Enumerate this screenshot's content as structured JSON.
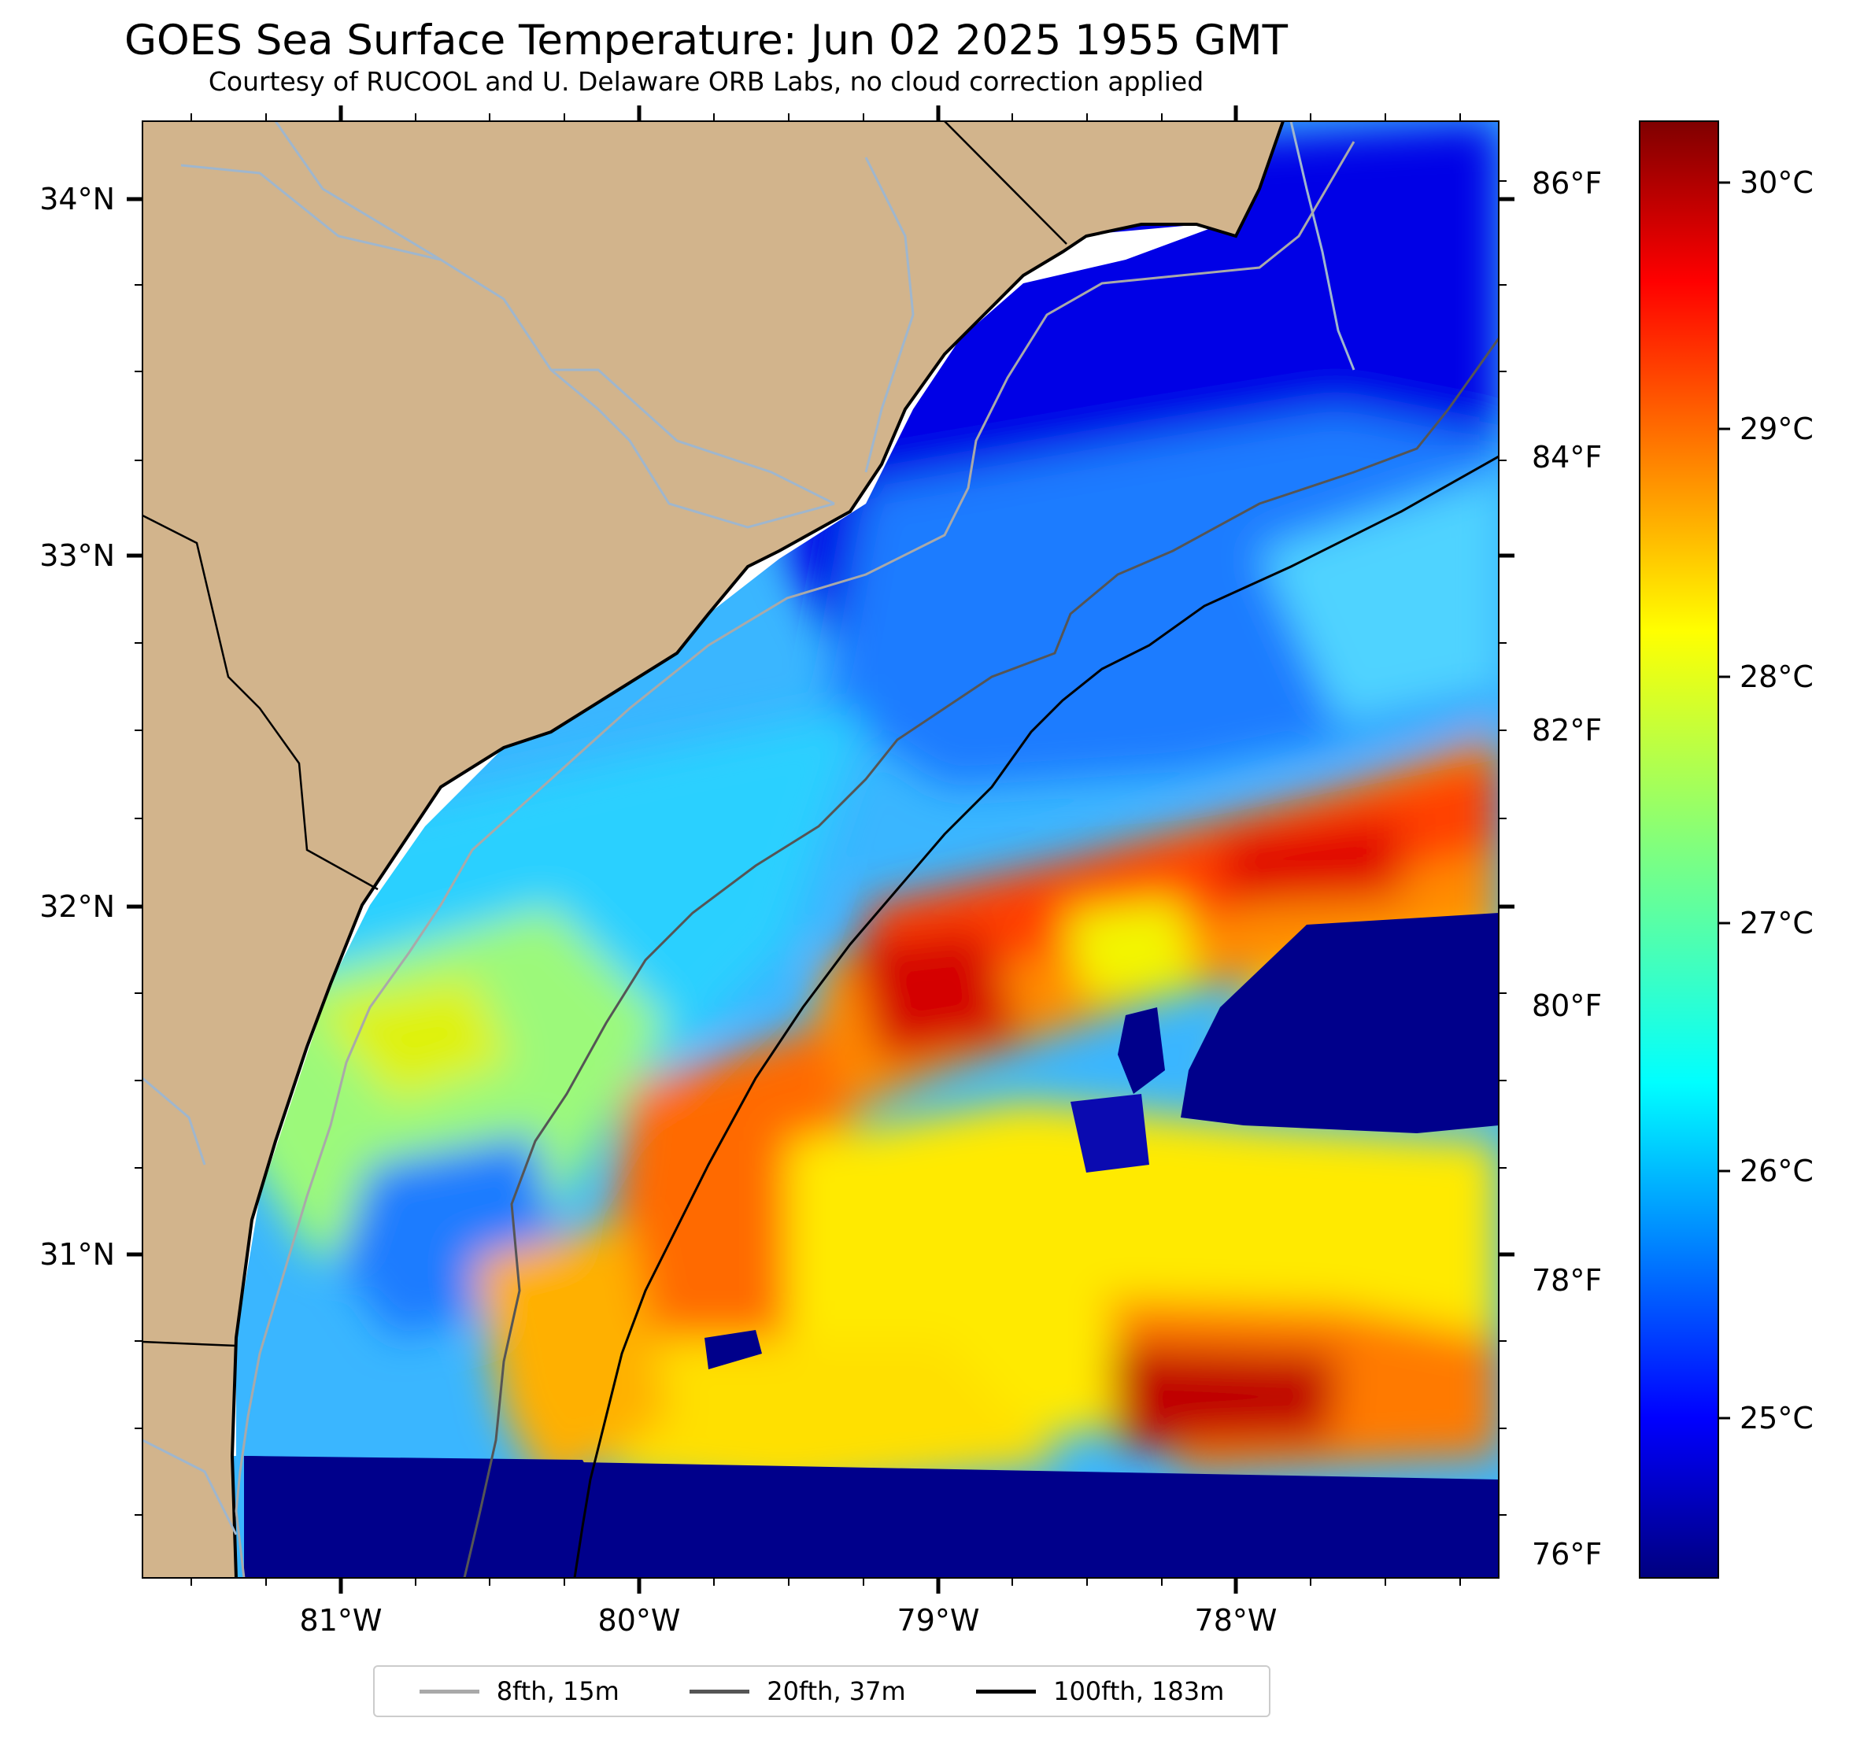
{
  "title": "GOES Sea Surface Temperature: Jun 02 2025 1955 GMT",
  "subtitle": "Courtesy of RUCOOL and U. Delaware ORB Labs, no cloud correction applied",
  "map": {
    "extent": {
      "lon_min": -81.67,
      "lon_max": -77.1,
      "lat_min": 30.1,
      "lat_max": 34.22
    },
    "lat_ticks": [
      "34°N",
      "33°N",
      "32°N",
      "31°N"
    ],
    "lon_ticks": [
      "81°W",
      "80°W",
      "79°W",
      "78°W"
    ],
    "temp_f_ticks": [
      "86°F",
      "84°F",
      "82°F",
      "80°F",
      "78°F",
      "76°F"
    ],
    "colors": {
      "land": "#d2b48c",
      "water_cold": "#00008b",
      "no_data": "#ffffff",
      "coastline": "#000000",
      "river": "#9fb6cd"
    }
  },
  "colorbar": {
    "label_ticks": [
      "30°C",
      "29°C",
      "28°C",
      "27°C",
      "26°C",
      "25°C"
    ],
    "range_c": [
      24.25,
      30.25
    ],
    "colormap": "jet"
  },
  "legend": {
    "items": [
      {
        "label": "8fth, 15m",
        "color": "#a9a9a9"
      },
      {
        "label": "20fth, 37m",
        "color": "#555555"
      },
      {
        "label": "100fth, 183m",
        "color": "#000000"
      }
    ]
  }
}
